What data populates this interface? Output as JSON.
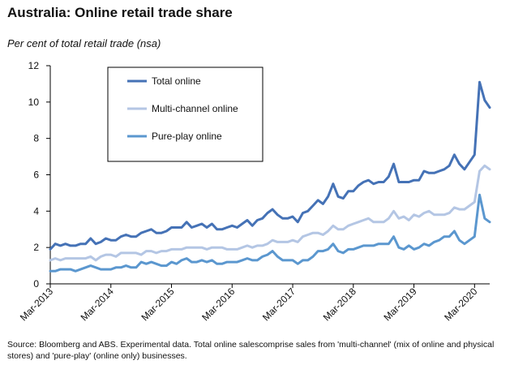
{
  "chart_data": {
    "type": "line",
    "title": "Australia: Online retail trade share",
    "ylabel": "Per cent of total retail trade (nsa)",
    "xlabel": "",
    "ylim": [
      0,
      12
    ],
    "yticks": [
      0,
      2,
      4,
      6,
      8,
      10,
      12
    ],
    "xlim": [
      "Mar-2013",
      "Jun-2020"
    ],
    "xticks": [
      "Mar-2013",
      "Mar-2014",
      "Mar-2015",
      "Mar-2016",
      "Mar-2017",
      "Mar-2018",
      "Mar-2019",
      "Mar-2020"
    ],
    "grid": false,
    "legend_position": "top-left",
    "x": [
      "2013-03",
      "2013-04",
      "2013-05",
      "2013-06",
      "2013-07",
      "2013-08",
      "2013-09",
      "2013-10",
      "2013-11",
      "2013-12",
      "2014-01",
      "2014-02",
      "2014-03",
      "2014-04",
      "2014-05",
      "2014-06",
      "2014-07",
      "2014-08",
      "2014-09",
      "2014-10",
      "2014-11",
      "2014-12",
      "2015-01",
      "2015-02",
      "2015-03",
      "2015-04",
      "2015-05",
      "2015-06",
      "2015-07",
      "2015-08",
      "2015-09",
      "2015-10",
      "2015-11",
      "2015-12",
      "2016-01",
      "2016-02",
      "2016-03",
      "2016-04",
      "2016-05",
      "2016-06",
      "2016-07",
      "2016-08",
      "2016-09",
      "2016-10",
      "2016-11",
      "2016-12",
      "2017-01",
      "2017-02",
      "2017-03",
      "2017-04",
      "2017-05",
      "2017-06",
      "2017-07",
      "2017-08",
      "2017-09",
      "2017-10",
      "2017-11",
      "2017-12",
      "2018-01",
      "2018-02",
      "2018-03",
      "2018-04",
      "2018-05",
      "2018-06",
      "2018-07",
      "2018-08",
      "2018-09",
      "2018-10",
      "2018-11",
      "2018-12",
      "2019-01",
      "2019-02",
      "2019-03",
      "2019-04",
      "2019-05",
      "2019-06",
      "2019-07",
      "2019-08",
      "2019-09",
      "2019-10",
      "2019-11",
      "2019-12",
      "2020-01",
      "2020-02",
      "2020-03",
      "2020-04",
      "2020-05",
      "2020-06"
    ],
    "series": [
      {
        "name": "Total online",
        "color": "#4572b6",
        "values": [
          1.9,
          2.2,
          2.1,
          2.2,
          2.1,
          2.1,
          2.2,
          2.2,
          2.5,
          2.2,
          2.3,
          2.5,
          2.4,
          2.4,
          2.6,
          2.7,
          2.6,
          2.6,
          2.8,
          2.9,
          3.0,
          2.8,
          2.8,
          2.9,
          3.1,
          3.1,
          3.1,
          3.4,
          3.1,
          3.2,
          3.3,
          3.1,
          3.3,
          3.0,
          3.0,
          3.1,
          3.2,
          3.1,
          3.3,
          3.5,
          3.2,
          3.5,
          3.6,
          3.9,
          4.1,
          3.8,
          3.6,
          3.6,
          3.7,
          3.4,
          3.9,
          4.0,
          4.3,
          4.6,
          4.4,
          4.8,
          5.5,
          4.8,
          4.7,
          5.1,
          5.1,
          5.4,
          5.6,
          5.7,
          5.5,
          5.6,
          5.6,
          5.9,
          6.6,
          5.6,
          5.6,
          5.6,
          5.7,
          5.7,
          6.2,
          6.1,
          6.1,
          6.2,
          6.3,
          6.5,
          7.1,
          6.6,
          6.3,
          6.7,
          7.1,
          11.1,
          10.1,
          9.7
        ]
      },
      {
        "name": "Multi-channel online",
        "color": "#b4c6e4",
        "values": [
          1.3,
          1.4,
          1.3,
          1.4,
          1.4,
          1.4,
          1.4,
          1.4,
          1.5,
          1.3,
          1.5,
          1.6,
          1.6,
          1.5,
          1.7,
          1.7,
          1.7,
          1.7,
          1.6,
          1.8,
          1.8,
          1.7,
          1.8,
          1.8,
          1.9,
          1.9,
          1.9,
          2.0,
          2.0,
          2.0,
          2.0,
          1.9,
          2.0,
          2.0,
          2.0,
          1.9,
          1.9,
          1.9,
          2.0,
          2.1,
          2.0,
          2.1,
          2.1,
          2.2,
          2.4,
          2.3,
          2.3,
          2.3,
          2.4,
          2.3,
          2.6,
          2.7,
          2.8,
          2.8,
          2.7,
          2.9,
          3.2,
          3.0,
          3.0,
          3.2,
          3.3,
          3.4,
          3.5,
          3.6,
          3.4,
          3.4,
          3.4,
          3.6,
          4.0,
          3.6,
          3.7,
          3.5,
          3.8,
          3.7,
          3.9,
          4.0,
          3.8,
          3.8,
          3.8,
          3.9,
          4.2,
          4.1,
          4.1,
          4.3,
          4.5,
          6.2,
          6.5,
          6.3
        ]
      },
      {
        "name": "Pure-play online",
        "color": "#5b97cf",
        "values": [
          0.7,
          0.7,
          0.8,
          0.8,
          0.8,
          0.7,
          0.8,
          0.9,
          1.0,
          0.9,
          0.8,
          0.8,
          0.8,
          0.9,
          0.9,
          1.0,
          0.9,
          0.9,
          1.2,
          1.1,
          1.2,
          1.1,
          1.0,
          1.0,
          1.2,
          1.1,
          1.3,
          1.4,
          1.2,
          1.2,
          1.3,
          1.2,
          1.3,
          1.1,
          1.1,
          1.2,
          1.2,
          1.2,
          1.3,
          1.4,
          1.3,
          1.3,
          1.5,
          1.6,
          1.8,
          1.5,
          1.3,
          1.3,
          1.3,
          1.1,
          1.3,
          1.3,
          1.5,
          1.8,
          1.8,
          1.9,
          2.2,
          1.8,
          1.7,
          1.9,
          1.9,
          2.0,
          2.1,
          2.1,
          2.1,
          2.2,
          2.2,
          2.2,
          2.6,
          2.0,
          1.9,
          2.1,
          1.9,
          2.0,
          2.2,
          2.1,
          2.3,
          2.4,
          2.6,
          2.6,
          2.9,
          2.4,
          2.2,
          2.4,
          2.6,
          4.9,
          3.6,
          3.4
        ]
      }
    ]
  },
  "source_note": "Source: Bloomberg and ABS.  Experimental data.  Total online salescomprise sales from 'multi-channel' (mix of online and physical stores) and 'pure-play' (online only) businesses."
}
